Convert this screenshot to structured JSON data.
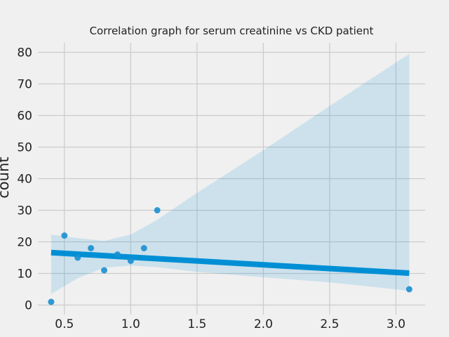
{
  "chart_data": {
    "type": "scatter",
    "title": "Correlation graph for serum creatinine vs CKD patient",
    "xlabel": "",
    "ylabel": "count",
    "xlim": [
      0.3,
      3.22
    ],
    "ylim": [
      -3,
      83
    ],
    "xticks": [
      0.5,
      1.0,
      1.5,
      2.0,
      2.5,
      3.0
    ],
    "xtick_labels": [
      "0.5",
      "1.0",
      "1.5",
      "2.0",
      "2.5",
      "3.0"
    ],
    "yticks": [
      0,
      10,
      20,
      30,
      40,
      50,
      60,
      70,
      80
    ],
    "ytick_labels": [
      "0",
      "10",
      "20",
      "30",
      "40",
      "50",
      "60",
      "70",
      "80"
    ],
    "grid": true,
    "points": [
      {
        "x": 0.4,
        "y": 1
      },
      {
        "x": 0.5,
        "y": 22
      },
      {
        "x": 0.6,
        "y": 15
      },
      {
        "x": 0.7,
        "y": 18
      },
      {
        "x": 0.8,
        "y": 11
      },
      {
        "x": 0.9,
        "y": 16
      },
      {
        "x": 1.0,
        "y": 14
      },
      {
        "x": 1.1,
        "y": 18
      },
      {
        "x": 1.2,
        "y": 30
      },
      {
        "x": 3.1,
        "y": 5
      }
    ],
    "regression": {
      "x": [
        0.4,
        3.1
      ],
      "y": [
        16.6,
        10.1
      ]
    },
    "confidence_band": {
      "x": [
        0.4,
        0.6,
        0.8,
        1.0,
        1.2,
        1.5,
        2.0,
        2.5,
        3.1
      ],
      "upper": [
        22.3,
        21.2,
        20.3,
        22.3,
        27.0,
        35.5,
        49.0,
        63.0,
        79.5
      ],
      "lower": [
        3.5,
        8.5,
        11.8,
        12.5,
        12.0,
        10.5,
        8.8,
        7.2,
        4.5
      ]
    },
    "colors": {
      "line": "#008fd5",
      "points": "#1a8fd0",
      "band": "#008fd5",
      "background": "#f0f0f0",
      "grid": "#cbcbcb",
      "text": "#222222"
    }
  }
}
